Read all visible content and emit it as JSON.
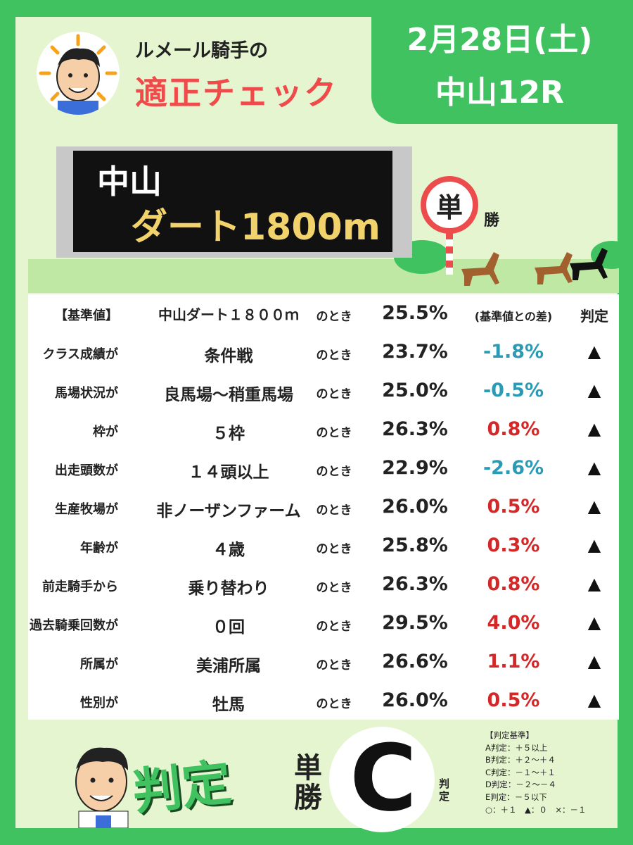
{
  "header": {
    "line1": "ルメール騎手の",
    "line2": "適正チェック",
    "date": "2月28日(土)",
    "race": "中山12R"
  },
  "course": {
    "line1": "中山",
    "line2": "ダート1800m",
    "bet_sign": "単",
    "bet_after": "勝"
  },
  "table": {
    "toki": "のとき",
    "header": {
      "label": "【基準値】",
      "value": "中山ダート１８００ｍ",
      "pct": "25.5%",
      "diff": "(基準値との差)",
      "judge": "判定"
    },
    "rows": [
      {
        "label": "クラス成績が",
        "value": "条件戦",
        "pct": "23.7%",
        "diff": "-1.8%",
        "judge": "▲"
      },
      {
        "label": "馬場状況が",
        "value": "良馬場～稍重馬場",
        "pct": "25.0%",
        "diff": "-0.5%",
        "judge": "▲"
      },
      {
        "label": "枠が",
        "value": "５枠",
        "pct": "26.3%",
        "diff": "0.8%",
        "judge": "▲"
      },
      {
        "label": "出走頭数が",
        "value": "１４頭以上",
        "pct": "22.9%",
        "diff": "-2.6%",
        "judge": "▲"
      },
      {
        "label": "生産牧場が",
        "value": "非ノーザンファーム",
        "pct": "26.0%",
        "diff": "0.5%",
        "judge": "▲"
      },
      {
        "label": "年齢が",
        "value": "４歳",
        "pct": "25.8%",
        "diff": "0.3%",
        "judge": "▲"
      },
      {
        "label": "前走騎手から",
        "value": "乗り替わり",
        "pct": "26.3%",
        "diff": "0.8%",
        "judge": "▲"
      },
      {
        "label": "過去騎乗回数が",
        "value": "０回",
        "pct": "29.5%",
        "diff": "4.0%",
        "judge": "▲"
      },
      {
        "label": "所属が",
        "value": "美浦所属",
        "pct": "26.6%",
        "diff": "1.1%",
        "judge": "▲"
      },
      {
        "label": "性別が",
        "value": "牡馬",
        "pct": "26.0%",
        "diff": "0.5%",
        "judge": "▲"
      }
    ]
  },
  "verdict": {
    "big_label": "判定",
    "bet_line1": "単",
    "bet_line2": "勝",
    "grade": "C",
    "grade_suffix": "判定"
  },
  "criteria": {
    "title": "【判定基準】",
    "lines": [
      "A判定：＋５以上",
      "B判定：＋２～＋４",
      "C判定：－１～＋１",
      "D判定：－２～－４",
      "E判定：－５以下",
      "○：＋１　▲：０　×：－１"
    ]
  },
  "colors": {
    "frame": "#3fc25f",
    "background": "#e4f5cf",
    "title_red": "#ef4b4b",
    "negative": "#2a9ab5",
    "positive": "#d42727",
    "board_text": "#f2d36b"
  }
}
